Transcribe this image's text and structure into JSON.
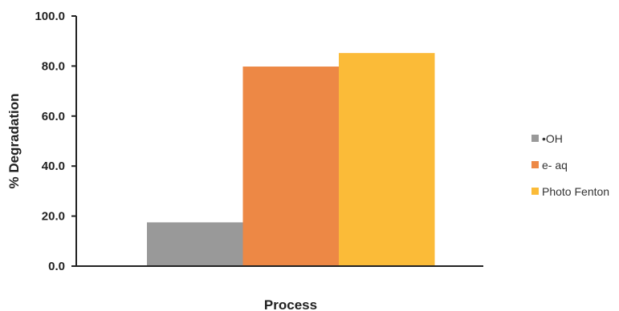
{
  "chart_data": {
    "type": "bar",
    "title": "",
    "xlabel": "Process",
    "ylabel": "% Degradation",
    "ylim": [
      0,
      100
    ],
    "yticks": [
      "0.0",
      "20.0",
      "40.0",
      "60.0",
      "80.0",
      "100.0"
    ],
    "grid": false,
    "legend_position": "right",
    "series": [
      {
        "name": "•OH",
        "values": [
          17.5
        ],
        "color": "#999999"
      },
      {
        "name": "e- aq",
        "values": [
          79.8
        ],
        "color": "#ed8845"
      },
      {
        "name": "Photo Fenton",
        "values": [
          85.2
        ],
        "color": "#fbbb38"
      }
    ]
  }
}
